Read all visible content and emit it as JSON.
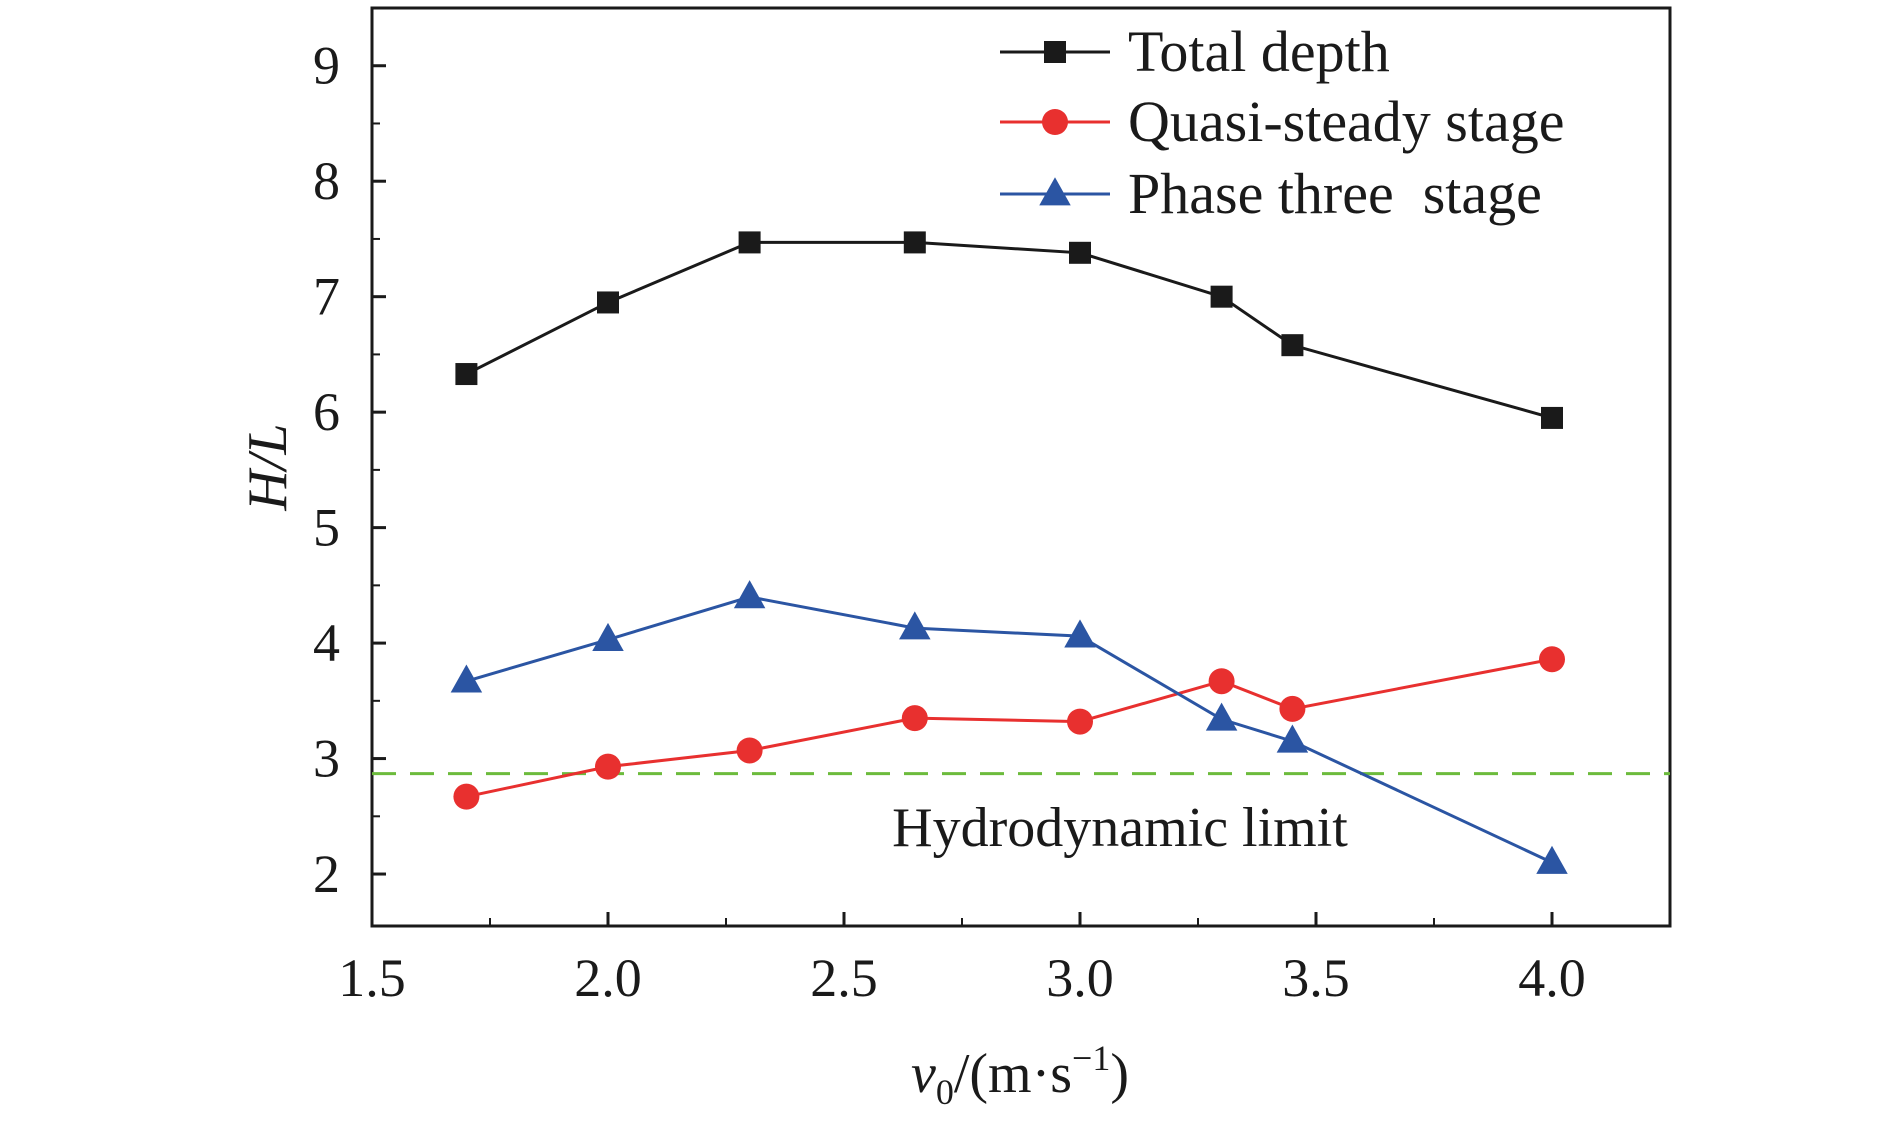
{
  "chart_data": {
    "type": "line",
    "xlabel": {
      "var": "v",
      "sub": "0",
      "unit_open": "/(m·s",
      "sup": "−1",
      "unit_close": ")"
    },
    "ylabel": "H/L",
    "xlim": [
      1.5,
      4.25
    ],
    "ylim": [
      1.55,
      9.5
    ],
    "xticks": [
      1.5,
      2.0,
      2.5,
      3.0,
      3.5,
      4.0
    ],
    "xtick_labels": [
      "1.5",
      "2.0",
      "2.5",
      "3.0",
      "3.5",
      "4.0"
    ],
    "yticks": [
      2,
      3,
      4,
      5,
      6,
      7,
      8,
      9
    ],
    "ytick_labels": [
      "2",
      "3",
      "4",
      "5",
      "6",
      "7",
      "8",
      "9"
    ],
    "x": [
      1.7,
      2.0,
      2.3,
      2.65,
      3.0,
      3.3,
      3.45,
      4.0
    ],
    "series": [
      {
        "name": "Total depth",
        "color": "#1a1a1a",
        "marker": "square",
        "values": [
          6.33,
          6.95,
          7.47,
          7.47,
          7.38,
          7.0,
          6.58,
          5.95
        ]
      },
      {
        "name": "Quasi-steady stage",
        "color": "#e8302f",
        "marker": "circle",
        "values": [
          2.67,
          2.93,
          3.07,
          3.35,
          3.32,
          3.67,
          3.43,
          3.86
        ]
      },
      {
        "name": "Phase three  stage",
        "color": "#2b55a3",
        "marker": "triangle",
        "values": [
          3.67,
          4.03,
          4.4,
          4.13,
          4.06,
          3.34,
          3.15,
          2.1
        ]
      }
    ],
    "reference_line": {
      "label": "Hydrodynamic limit",
      "y": 2.87,
      "color": "#6cbb3c",
      "style": "dashed"
    },
    "legend_position": "top-right",
    "grid": false
  }
}
